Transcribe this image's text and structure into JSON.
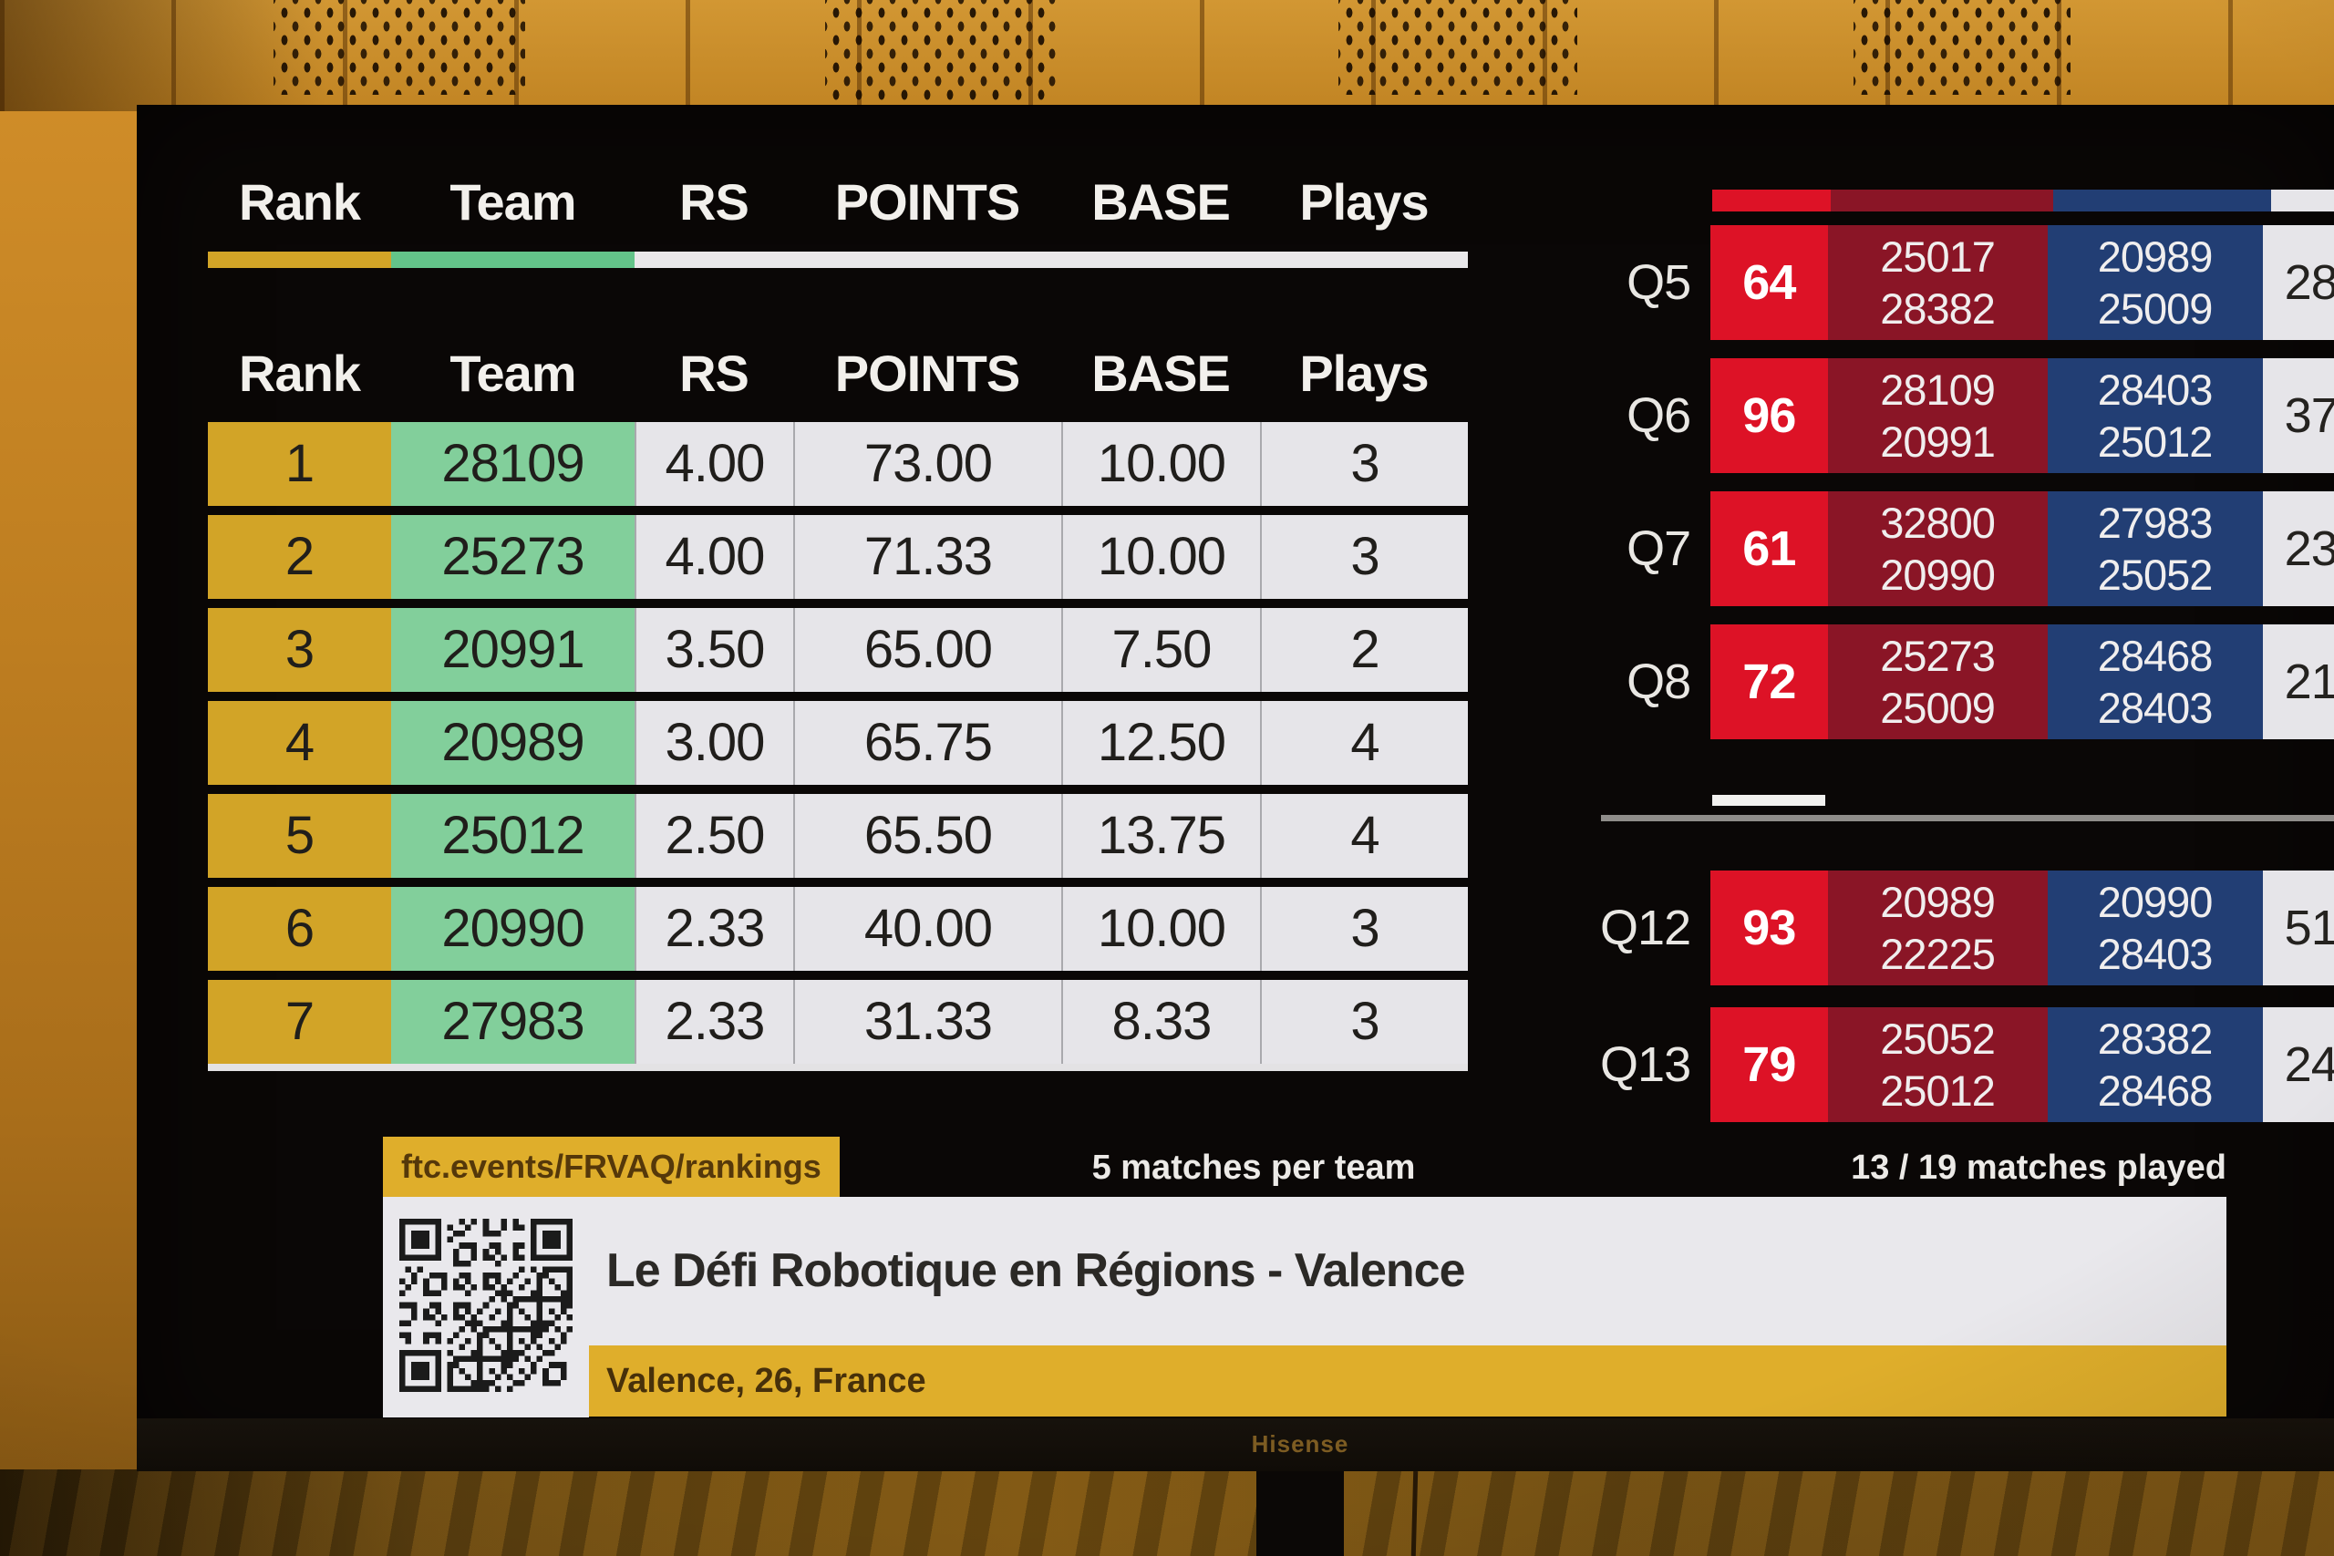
{
  "event": {
    "title": "Le Défi Robotique en Régions - Valence",
    "location": "Valence, 26, France",
    "url_badge": "ftc.events/FRVAQ/rankings",
    "matches_per_team": "5 matches per team",
    "matches_played": "13 / 19 matches played",
    "tv_brand": "Hisense"
  },
  "rankings": {
    "headers": [
      "Rank",
      "Team",
      "RS",
      "POINTS",
      "BASE",
      "Plays"
    ],
    "rows": [
      {
        "rank": "1",
        "team": "28109",
        "rs": "4.00",
        "points": "73.00",
        "base": "10.00",
        "plays": "3"
      },
      {
        "rank": "2",
        "team": "25273",
        "rs": "4.00",
        "points": "71.33",
        "base": "10.00",
        "plays": "3"
      },
      {
        "rank": "3",
        "team": "20991",
        "rs": "3.50",
        "points": "65.00",
        "base": "7.50",
        "plays": "2"
      },
      {
        "rank": "4",
        "team": "20989",
        "rs": "3.00",
        "points": "65.75",
        "base": "12.50",
        "plays": "4"
      },
      {
        "rank": "5",
        "team": "25012",
        "rs": "2.50",
        "points": "65.50",
        "base": "13.75",
        "plays": "4"
      },
      {
        "rank": "6",
        "team": "20990",
        "rs": "2.33",
        "points": "40.00",
        "base": "10.00",
        "plays": "3"
      },
      {
        "rank": "7",
        "team": "27983",
        "rs": "2.33",
        "points": "31.33",
        "base": "8.33",
        "plays": "3"
      }
    ]
  },
  "matches": {
    "rows": [
      {
        "label": "Q5",
        "red_score": "64",
        "red_team_1": "25017",
        "red_team_2": "28382",
        "blue_team_1": "20989",
        "blue_team_2": "25009",
        "blue_score_visible": "28"
      },
      {
        "label": "Q6",
        "red_score": "96",
        "red_team_1": "28109",
        "red_team_2": "20991",
        "blue_team_1": "28403",
        "blue_team_2": "25012",
        "blue_score_visible": "37"
      },
      {
        "label": "Q7",
        "red_score": "61",
        "red_team_1": "32800",
        "red_team_2": "20990",
        "blue_team_1": "27983",
        "blue_team_2": "25052",
        "blue_score_visible": "23"
      },
      {
        "label": "Q8",
        "red_score": "72",
        "red_team_1": "25273",
        "red_team_2": "25009",
        "blue_team_1": "28468",
        "blue_team_2": "28403",
        "blue_score_visible": "21"
      },
      {
        "label": "Q12",
        "red_score": "93",
        "red_team_1": "20989",
        "red_team_2": "22225",
        "blue_team_1": "20990",
        "blue_team_2": "28403",
        "blue_score_visible": "51"
      },
      {
        "label": "Q13",
        "red_score": "79",
        "red_team_1": "25052",
        "red_team_2": "25012",
        "blue_team_1": "28382",
        "blue_team_2": "28468",
        "blue_score_visible": "24"
      }
    ]
  },
  "colors": {
    "rank_gold": "#d2a427",
    "team_green": "#82cf9b",
    "cell_white": "#e6e5e9",
    "score_red": "#dd1226",
    "alliance_red": "#8a1526",
    "alliance_blue": "#223e74",
    "banner_yellow": "#dfae2b"
  }
}
